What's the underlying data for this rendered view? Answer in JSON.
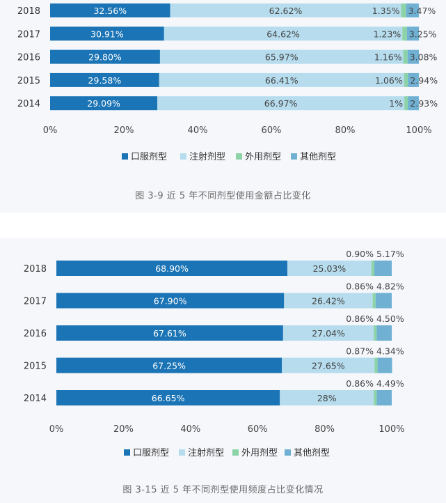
{
  "chart_data": [
    {
      "type": "bar",
      "orientation": "horizontal",
      "stacked": true,
      "title": "图 3-9 近 5 年不同剂型使用金额占比变化",
      "categories": [
        "2018",
        "2017",
        "2016",
        "2015",
        "2014"
      ],
      "series": [
        {
          "name": "口服剂型",
          "color": "#1b74b5",
          "values": [
            32.56,
            30.91,
            29.8,
            29.58,
            29.09
          ],
          "labels": [
            "32.56%",
            "30.91%",
            "29.80%",
            "29.58%",
            "29.09%"
          ]
        },
        {
          "name": "注射剂型",
          "color": "#b6dcee",
          "values": [
            62.62,
            64.62,
            65.97,
            66.41,
            66.97
          ],
          "labels": [
            "62.62%",
            "64.62%",
            "65.97%",
            "66.41%",
            "66.97%"
          ]
        },
        {
          "name": "外用剂型",
          "color": "#8dd3a8",
          "values": [
            1.35,
            1.23,
            1.16,
            1.06,
            1.0
          ],
          "labels": [
            "1.35%",
            "1.23%",
            "1.16%",
            "1.06%",
            "1%"
          ]
        },
        {
          "name": "其他剂型",
          "color": "#6fb0d3",
          "values": [
            3.47,
            3.25,
            3.08,
            2.94,
            2.93
          ],
          "labels": [
            "3.47%",
            "3.25%",
            "3.08%",
            "2.94%",
            "2.93%"
          ]
        }
      ],
      "xlim": [
        0,
        100
      ],
      "xticks": [
        "0%",
        "20%",
        "40%",
        "60%",
        "80%",
        "100%"
      ],
      "legend_position": "bottom",
      "grid": false
    },
    {
      "type": "bar",
      "orientation": "horizontal",
      "stacked": true,
      "title": "图 3-15 近 5 年不同剂型使用频度占比变化情况",
      "categories": [
        "2018",
        "2017",
        "2016",
        "2015",
        "2014"
      ],
      "series": [
        {
          "name": "口服剂型",
          "color": "#1b74b5",
          "values": [
            68.9,
            67.9,
            67.61,
            67.25,
            66.65
          ],
          "labels": [
            "68.90%",
            "67.90%",
            "67.61%",
            "67.25%",
            "66.65%"
          ]
        },
        {
          "name": "注射剂型",
          "color": "#b6dcee",
          "values": [
            25.03,
            26.42,
            27.04,
            27.65,
            28.0
          ],
          "labels": [
            "25.03%",
            "26.42%",
            "27.04%",
            "27.65%",
            "28%"
          ]
        },
        {
          "name": "外用剂型",
          "color": "#8dd3a8",
          "values": [
            0.9,
            0.86,
            0.86,
            0.87,
            0.86
          ],
          "labels": [
            "0.90%",
            "0.86%",
            "0.86%",
            "0.87%",
            "0.86%"
          ]
        },
        {
          "name": "其他剂型",
          "color": "#6fb0d3",
          "values": [
            5.17,
            4.82,
            4.5,
            4.34,
            4.49
          ],
          "labels": [
            "5.17%",
            "4.82%",
            "4.50%",
            "4.34%",
            "4.49%"
          ]
        }
      ],
      "xlim": [
        0,
        100
      ],
      "xticks": [
        "0%",
        "20%",
        "40%",
        "60%",
        "80%",
        "100%"
      ],
      "legend_position": "bottom",
      "grid": false
    }
  ]
}
